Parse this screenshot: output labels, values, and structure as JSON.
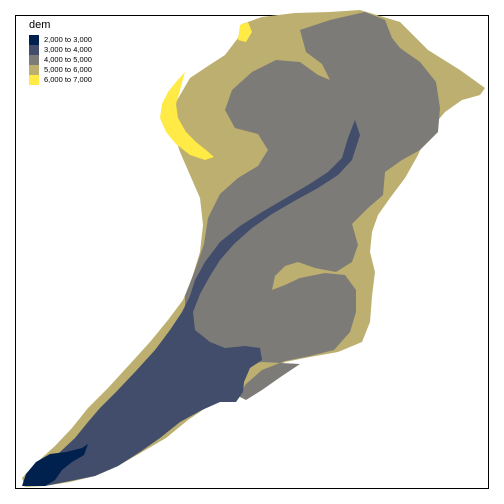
{
  "map": {
    "legend": {
      "title": "dem",
      "classes": [
        {
          "label": "2,000 to 3,000",
          "color": "#00204D"
        },
        {
          "label": "3,000 to 4,000",
          "color": "#414D6B"
        },
        {
          "label": "4,000 to 5,000",
          "color": "#7C7B78"
        },
        {
          "label": "5,000 to 6,000",
          "color": "#BCAF6F"
        },
        {
          "label": "6,000 to 7,000",
          "color": "#FFEA46"
        }
      ]
    }
  }
}
